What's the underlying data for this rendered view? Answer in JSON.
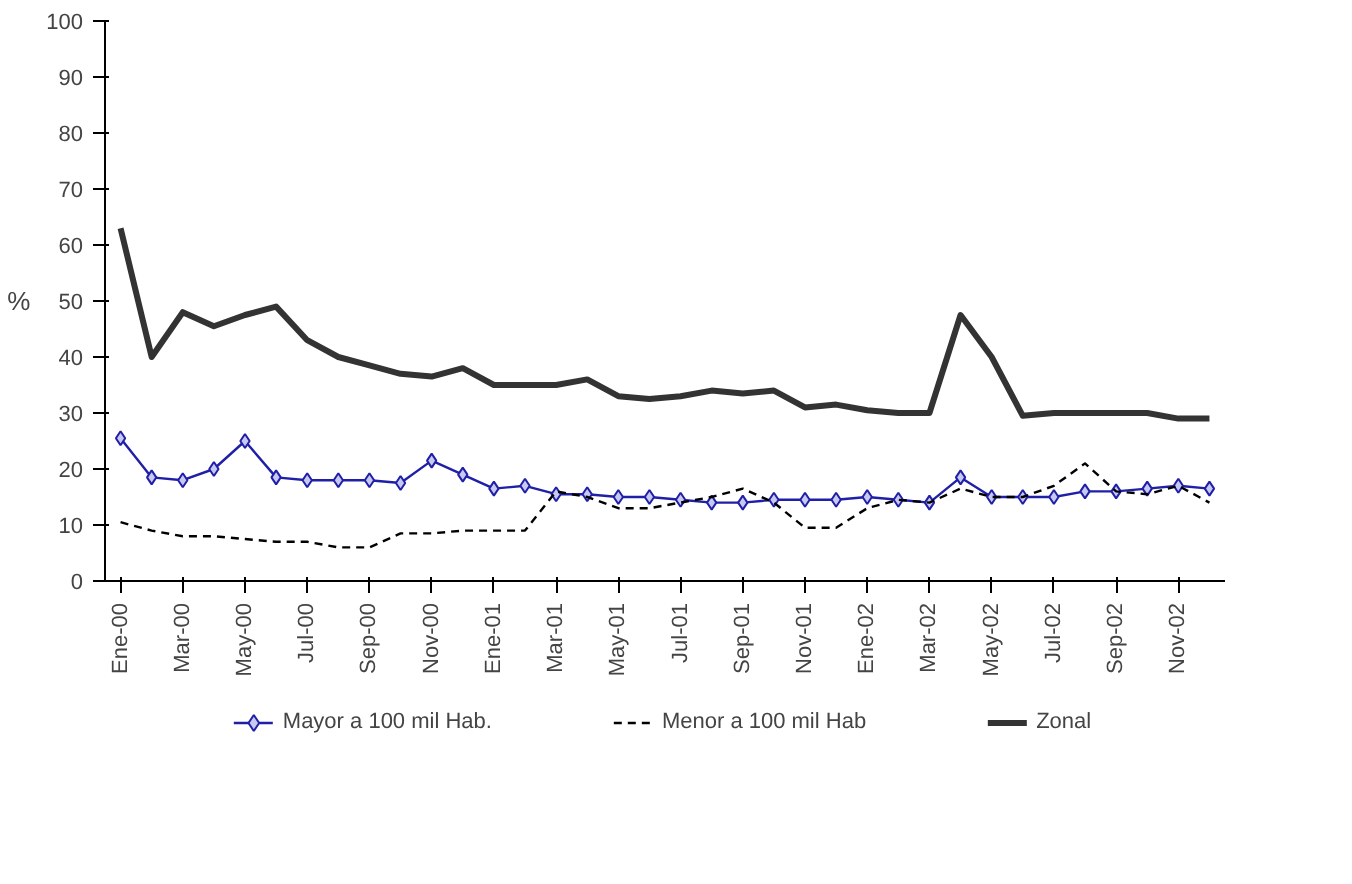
{
  "chart_data": {
    "type": "line",
    "ylabel": "%",
    "categories": [
      "Ene-00",
      null,
      "Mar-00",
      null,
      "May-00",
      null,
      "Jul-00",
      null,
      "Sep-00",
      null,
      "Nov-00",
      null,
      "Ene-01",
      null,
      "Mar-01",
      null,
      "May-01",
      null,
      "Jul-01",
      null,
      "Sep-01",
      null,
      "Nov-01",
      null,
      "Ene-02",
      null,
      "Mar-02",
      null,
      "May-02",
      null,
      "Jul-02",
      null,
      "Sep-02",
      null,
      "Nov-02",
      null
    ],
    "series": [
      {
        "name": "Mayor a 100 mil Hab.",
        "color": "#1f1fa8",
        "marker": "diamond",
        "line_style": "solid",
        "values": [
          25.5,
          18.5,
          18,
          20,
          25,
          18.5,
          18,
          18,
          18,
          17.5,
          21.5,
          19,
          16.5,
          17,
          15.5,
          15.5,
          15,
          15,
          14.5,
          14,
          14,
          14.5,
          14.5,
          14.5,
          15,
          14.5,
          14,
          18.5,
          15,
          15,
          15,
          16,
          16,
          16.5,
          17,
          16.5
        ]
      },
      {
        "name": "Menor a 100 mil Hab",
        "color": "#000000",
        "marker": "none",
        "line_style": "dashed",
        "values": [
          10.5,
          9,
          8,
          8,
          7.5,
          7,
          7,
          6,
          6,
          8.5,
          8.5,
          9,
          9,
          9,
          16,
          15,
          13,
          13,
          14,
          15,
          16.5,
          14,
          9.5,
          9.5,
          13,
          14.5,
          14,
          16.5,
          15,
          15,
          17,
          21,
          16,
          15.5,
          17,
          14
        ]
      },
      {
        "name": "Zonal",
        "color": "#333333",
        "marker": "none",
        "line_style": "solid",
        "values": [
          63,
          40,
          48,
          45.5,
          47.5,
          49,
          43,
          40,
          38.5,
          37,
          36.5,
          38,
          35,
          35,
          35,
          36,
          33,
          32.5,
          33,
          34,
          33.5,
          34,
          31,
          31.5,
          30.5,
          30,
          30,
          47.5,
          40,
          29.5,
          30,
          30,
          30,
          30,
          29,
          29
        ]
      }
    ],
    "ylim": [
      0,
      100
    ],
    "yticks": [
      0,
      10,
      20,
      30,
      40,
      50,
      60,
      70,
      80,
      90,
      100
    ],
    "grid": false,
    "legend": "bottom"
  }
}
